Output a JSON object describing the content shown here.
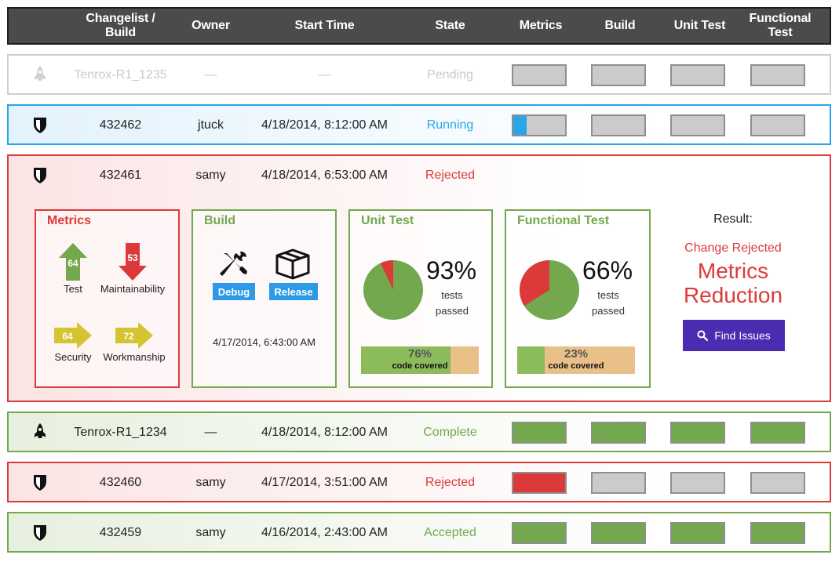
{
  "header": {
    "col_changelist": "Changelist / Build",
    "col_owner": "Owner",
    "col_start": "Start Time",
    "col_state": "State",
    "col_metrics": "Metrics",
    "col_build": "Build",
    "col_unit": "Unit Test",
    "col_functional": "Functional Test"
  },
  "colors": {
    "header_bg": "#4b4b4b",
    "running": "#29a6e9",
    "rejected": "#dc3a3a",
    "accepted": "#73a84e",
    "bar_green": "#73a84e",
    "bar_red": "#dc3a3a",
    "bar_gray": "#cbcbcb",
    "find_button": "#4b2bb0"
  },
  "rows": [
    {
      "icon": "rocket-icon",
      "changelist": "Tenrox-R1_1235",
      "owner": "—",
      "start": "—",
      "state": "Pending",
      "state_color": "#c9c9c9",
      "metrics": "none",
      "build": "none",
      "unit": "none",
      "functional": "none"
    },
    {
      "icon": "shield-icon",
      "changelist": "432462",
      "owner": "jtuck",
      "start": "4/18/2014, 8:12:00 AM",
      "state": "Running",
      "state_color": "#29a6e9",
      "metrics": "running",
      "metrics_progress": 0.25,
      "build": "none",
      "unit": "none",
      "functional": "none"
    },
    {
      "icon": "shield-icon",
      "changelist": "432461",
      "owner": "samy",
      "start": "4/18/2014, 6:53:00 AM",
      "state": "Rejected",
      "state_color": "#dc3a3a",
      "expanded": true
    },
    {
      "icon": "rocket-icon",
      "changelist": "Tenrox-R1_1234",
      "owner": "—",
      "start": "4/18/2014, 8:12:00 AM",
      "state": "Complete",
      "state_color": "#73a84e",
      "metrics": "pass",
      "build": "pass",
      "unit": "pass",
      "functional": "pass"
    },
    {
      "icon": "shield-icon",
      "changelist": "432460",
      "owner": "samy",
      "start": "4/17/2014, 3:51:00 AM",
      "state": "Rejected",
      "state_color": "#dc3a3a",
      "metrics": "fail",
      "build": "none",
      "unit": "none",
      "functional": "none"
    },
    {
      "icon": "shield-icon",
      "changelist": "432459",
      "owner": "samy",
      "start": "4/16/2014, 2:43:00 AM",
      "state": "Accepted",
      "state_color": "#73a84e",
      "metrics": "pass",
      "build": "pass",
      "unit": "pass",
      "functional": "pass"
    }
  ],
  "details": {
    "metrics": {
      "title": "Metrics",
      "items": [
        {
          "label": "Test",
          "value": "64",
          "direction": "up",
          "color": "#73a84e"
        },
        {
          "label": "Maintainability",
          "value": "53",
          "direction": "down",
          "color": "#dc3a3a"
        },
        {
          "label": "Security",
          "value": "64",
          "direction": "right",
          "color": "#d4c431"
        },
        {
          "label": "Workmanship",
          "value": "72",
          "direction": "right",
          "color": "#d4c431"
        }
      ]
    },
    "build": {
      "title": "Build",
      "debug_label": "Debug",
      "release_label": "Release",
      "date": "4/17/2014, 6:43:00 AM"
    },
    "unit_test": {
      "title": "Unit Test",
      "percent": "93%",
      "pass_fraction": 0.93,
      "sub": "tests passed",
      "coverage": "76%",
      "coverage_fraction": 0.76,
      "coverage_label": "code covered"
    },
    "functional_test": {
      "title": "Functional Test",
      "percent": "66%",
      "pass_fraction": 0.66,
      "sub": "tests passed",
      "coverage": "23%",
      "coverage_fraction": 0.23,
      "coverage_label": "code covered"
    },
    "result": {
      "label": "Result:",
      "status": "Change Rejected",
      "reason": "Metrics Reduction",
      "button": "Find Issues"
    }
  }
}
